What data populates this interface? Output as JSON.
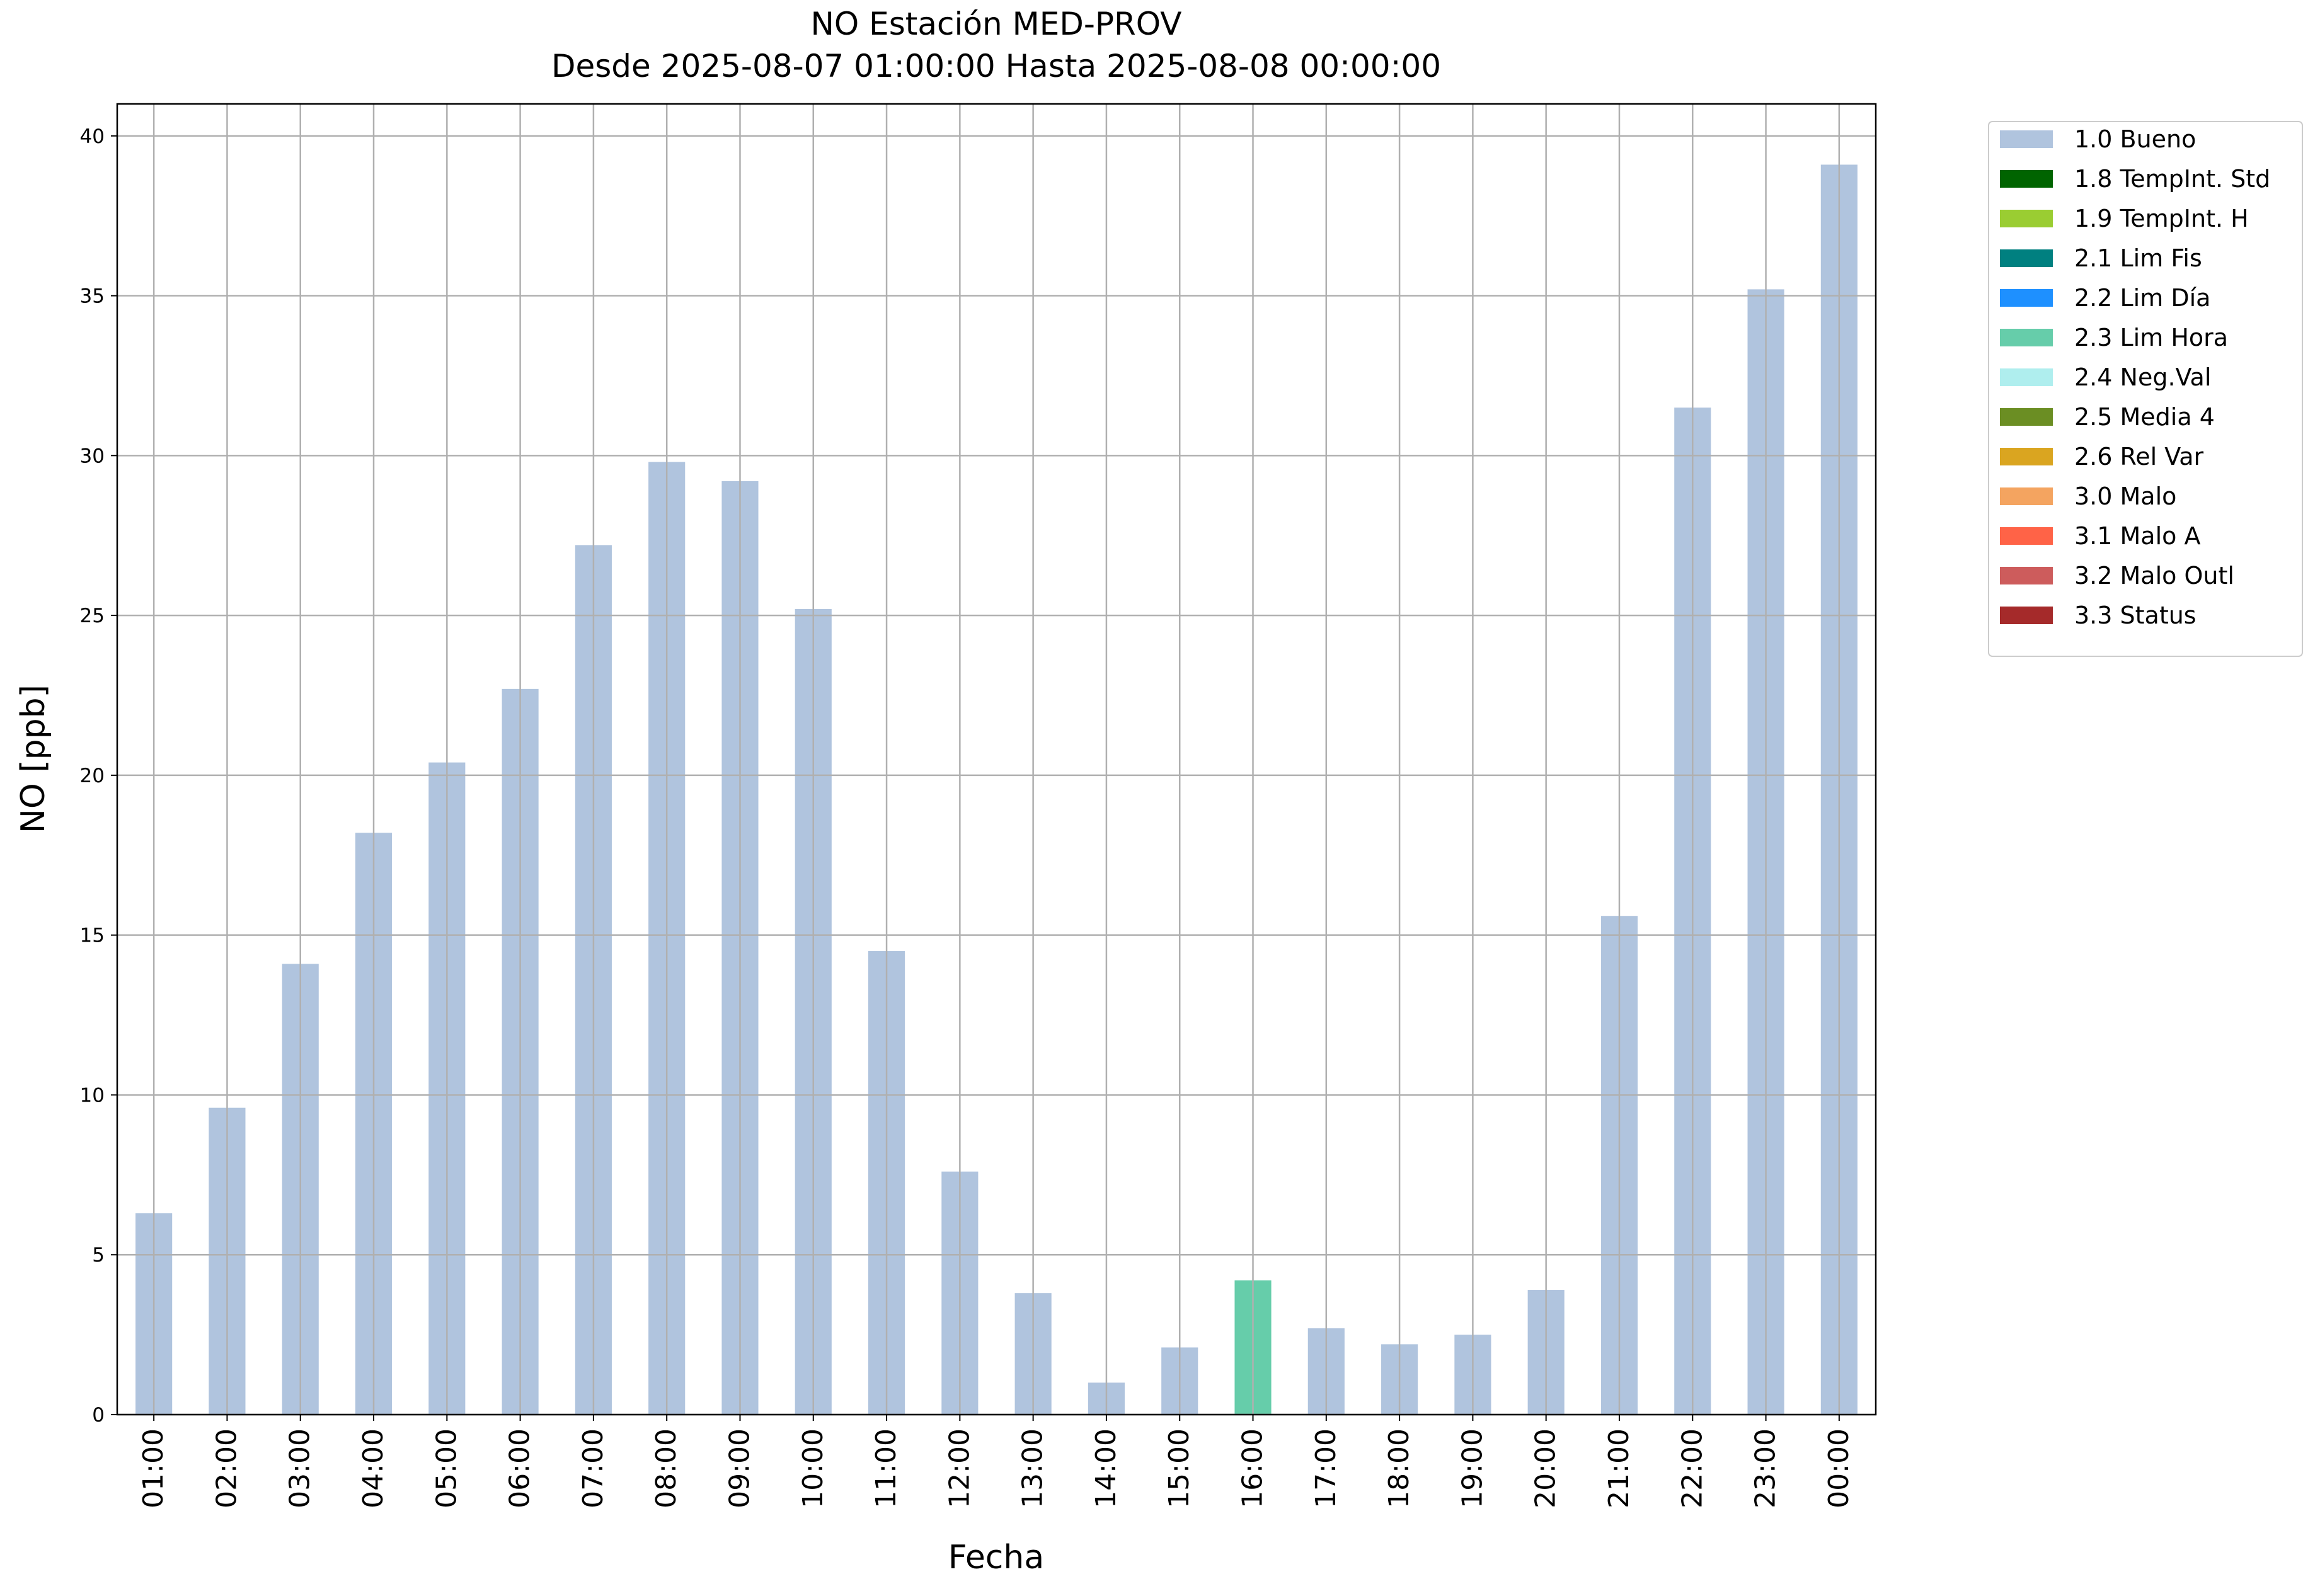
{
  "chart_data": {
    "type": "stacked_bar",
    "title": "NO Estación MED-PROV",
    "subtitle": "Desde 2025-08-07 01:00:00 Hasta 2025-08-08 00:00:00",
    "x_label": "Fecha",
    "y_label": "NO [ppb]",
    "categories": [
      "01:00",
      "02:00",
      "03:00",
      "04:00",
      "05:00",
      "06:00",
      "07:00",
      "08:00",
      "09:00",
      "10:00",
      "11:00",
      "12:00",
      "13:00",
      "14:00",
      "15:00",
      "16:00",
      "17:00",
      "18:00",
      "19:00",
      "20:00",
      "21:00",
      "22:00",
      "23:00",
      "00:00"
    ],
    "series": [
      {
        "name": "1.0 Bueno",
        "color": "#b0c4de",
        "values": [
          6.3,
          9.6,
          14.1,
          18.2,
          20.4,
          22.7,
          27.2,
          29.8,
          29.2,
          25.2,
          14.5,
          7.6,
          3.8,
          1.0,
          2.1,
          null,
          2.7,
          2.2,
          2.5,
          3.9,
          15.6,
          31.5,
          35.2,
          39.1
        ]
      },
      {
        "name": "1.8 TempInt. Std",
        "color": "#006400",
        "values": [
          null,
          null,
          null,
          null,
          null,
          null,
          null,
          null,
          null,
          null,
          null,
          null,
          null,
          null,
          null,
          null,
          null,
          null,
          null,
          null,
          null,
          null,
          null,
          null
        ]
      },
      {
        "name": "1.9 TempInt. H",
        "color": "#9acd32",
        "values": [
          null,
          null,
          null,
          null,
          null,
          null,
          null,
          null,
          null,
          null,
          null,
          null,
          null,
          null,
          null,
          null,
          null,
          null,
          null,
          null,
          null,
          null,
          null,
          null
        ]
      },
      {
        "name": "2.1 Lim Fis",
        "color": "#008080",
        "values": [
          null,
          null,
          null,
          null,
          null,
          null,
          null,
          null,
          null,
          null,
          null,
          null,
          null,
          null,
          null,
          null,
          null,
          null,
          null,
          null,
          null,
          null,
          null,
          null
        ]
      },
      {
        "name": "2.2 Lim Día",
        "color": "#1e90ff",
        "values": [
          null,
          null,
          null,
          null,
          null,
          null,
          null,
          null,
          null,
          null,
          null,
          null,
          null,
          null,
          null,
          null,
          null,
          null,
          null,
          null,
          null,
          null,
          null,
          null
        ]
      },
      {
        "name": "2.3 Lim Hora",
        "color": "#66cdaa",
        "values": [
          null,
          null,
          null,
          null,
          null,
          null,
          null,
          null,
          null,
          null,
          null,
          null,
          null,
          null,
          null,
          4.2,
          null,
          null,
          null,
          null,
          null,
          null,
          null,
          null
        ]
      },
      {
        "name": "2.4 Neg.Val",
        "color": "#afeeee",
        "values": [
          null,
          null,
          null,
          null,
          null,
          null,
          null,
          null,
          null,
          null,
          null,
          null,
          null,
          null,
          null,
          null,
          null,
          null,
          null,
          null,
          null,
          null,
          null,
          null
        ]
      },
      {
        "name": "2.5 Media 4",
        "color": "#6b8e23",
        "values": [
          null,
          null,
          null,
          null,
          null,
          null,
          null,
          null,
          null,
          null,
          null,
          null,
          null,
          null,
          null,
          null,
          null,
          null,
          null,
          null,
          null,
          null,
          null,
          null
        ]
      },
      {
        "name": "2.6 Rel Var",
        "color": "#daa520",
        "values": [
          null,
          null,
          null,
          null,
          null,
          null,
          null,
          null,
          null,
          null,
          null,
          null,
          null,
          null,
          null,
          null,
          null,
          null,
          null,
          null,
          null,
          null,
          null,
          null
        ]
      },
      {
        "name": "3.0 Malo",
        "color": "#f4a460",
        "values": [
          null,
          null,
          null,
          null,
          null,
          null,
          null,
          null,
          null,
          null,
          null,
          null,
          null,
          null,
          null,
          null,
          null,
          null,
          null,
          null,
          null,
          null,
          null,
          null
        ]
      },
      {
        "name": "3.1 Malo A",
        "color": "#ff6347",
        "values": [
          null,
          null,
          null,
          null,
          null,
          null,
          null,
          null,
          null,
          null,
          null,
          null,
          null,
          null,
          null,
          null,
          null,
          null,
          null,
          null,
          null,
          null,
          null,
          null
        ]
      },
      {
        "name": "3.2 Malo Outl",
        "color": "#cd5c5c",
        "values": [
          null,
          null,
          null,
          null,
          null,
          null,
          null,
          null,
          null,
          null,
          null,
          null,
          null,
          null,
          null,
          null,
          null,
          null,
          null,
          null,
          null,
          null,
          null,
          null
        ]
      },
      {
        "name": "3.3 Status",
        "color": "#a52a2a",
        "values": [
          null,
          null,
          null,
          null,
          null,
          null,
          null,
          null,
          null,
          null,
          null,
          null,
          null,
          null,
          null,
          null,
          null,
          null,
          null,
          null,
          null,
          null,
          null,
          null
        ]
      }
    ],
    "ylim": [
      0,
      41
    ],
    "yticks": [
      0,
      5,
      10,
      15,
      20,
      25,
      30,
      35,
      40
    ],
    "grid": true,
    "legend": "outside-right"
  }
}
